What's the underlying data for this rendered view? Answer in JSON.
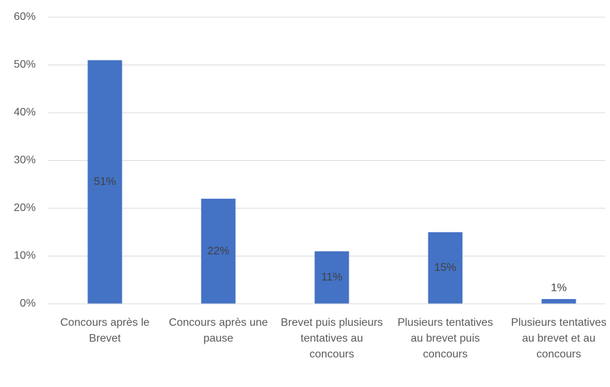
{
  "chart_data": {
    "type": "bar",
    "categories": [
      "Concours après le Brevet",
      "Concours après une pause",
      "Brevet puis plusieurs tentatives au concours",
      "Plusieurs tentatives au brevet puis concours",
      "Plusieurs tentatives au brevet et au concours"
    ],
    "values": [
      51,
      22,
      11,
      15,
      1
    ],
    "value_labels": [
      "51%",
      "22%",
      "11%",
      "15%",
      "1%"
    ],
    "color": "#4472c4",
    "ylim": [
      0,
      60
    ],
    "yticks": [
      {
        "value": 0,
        "label": "0%"
      },
      {
        "value": 10,
        "label": "10%"
      },
      {
        "value": 20,
        "label": "20%"
      },
      {
        "value": 30,
        "label": "30%"
      },
      {
        "value": 40,
        "label": "40%"
      },
      {
        "value": 50,
        "label": "50%"
      },
      {
        "value": 60,
        "label": "60%"
      }
    ],
    "grid": true
  }
}
